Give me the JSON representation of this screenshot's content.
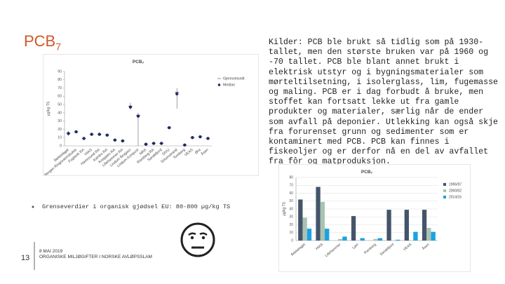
{
  "slide": {
    "title": "PCB",
    "title_sub": "7",
    "paragraph": "Kilder: PCB ble brukt så tidlig som på 1930-tallet, men den største bruken var på 1960 og -70 tallet. PCB ble blant annet brukt i elektrisk utstyr og i bygningsmaterialer som mørteltilsetning, i isolerglass, lim, fugemasse og maling. PCB er i dag forbudt å bruke, men stoffet kan fortsatt lekke ut fra gamle produkter og materialer, særlig når de ender som avfall på deponier. Utlekking kan også skje fra forurenset grunn og sedimenter som er kontaminert med PCB. PCB kan finnes i fiskeoljer og er derfor nå en del av avfallet fra fôr og matproduksjon.",
    "bullet": "Grenseverdier i organisk gjødsel EU: 80-800 µg/kg TS",
    "page_number": "13",
    "date": "8 MAI 2019",
    "footer": "ORGANISKE MILJØGIFTER I NORSKE AVLØPSSLAM"
  },
  "chart_data": [
    {
      "type": "dot",
      "title": "PCB",
      "title_sub": "7",
      "y_label": "µg/kg TS",
      "categories": [
        "Bekkelaget",
        "Bergen Ringsvannsbukta",
        "Fuglevik RA",
        "HIAS",
        "Hamnsund RA",
        "Kambo RA",
        "Knappen RA",
        "Lillehammer RA",
        "Lindum Biogass",
        "Lindum kompost",
        "NRA",
        "Ramberg RA",
        "Sandefjord",
        "SIVU",
        "Solumstrand",
        "Tomberg",
        "VEAS",
        "Øra",
        "Åsen"
      ],
      "series": [
        {
          "name": "Gjennomsnitt",
          "marker": "dash",
          "color": "#8c8c8c",
          "values": [
            15,
            17,
            9,
            14,
            14,
            13,
            7,
            6,
            48,
            37,
            2,
            3,
            3,
            22,
            65,
            1,
            10,
            11,
            9
          ]
        },
        {
          "name": "Median",
          "marker": "dot",
          "color": "#1f2a6b",
          "values": [
            15,
            17,
            9,
            14,
            14,
            13,
            7,
            6,
            47,
            36,
            2,
            3,
            3,
            22,
            63,
            1,
            10,
            11,
            9
          ]
        }
      ],
      "ranges": [
        [
          12,
          18
        ],
        [
          16,
          18
        ],
        [
          8,
          10
        ],
        [
          13,
          15
        ],
        [
          13,
          15
        ],
        [
          12,
          14
        ],
        [
          6,
          8
        ],
        [
          5,
          7
        ],
        [
          44,
          52
        ],
        [
          0,
          40
        ],
        [
          1,
          3
        ],
        [
          2,
          4
        ],
        [
          2,
          4
        ],
        [
          20,
          23
        ],
        [
          45,
          70
        ],
        [
          0,
          2
        ],
        [
          9,
          11
        ],
        [
          10,
          12
        ],
        [
          8,
          10
        ]
      ],
      "ylim": [
        0,
        90
      ],
      "yticks": [
        0,
        10,
        20,
        30,
        40,
        50,
        60,
        70,
        80,
        90
      ],
      "grid": false,
      "legend": "right"
    },
    {
      "type": "bar",
      "title": "PCB",
      "title_sub": "7",
      "y_label": "µg/kg TS",
      "categories": [
        "Bekkelaget",
        "HIAS",
        "Lillehammer",
        "Ljan",
        "Ramberg",
        "Sandefjord",
        "VEAS",
        "Åsen"
      ],
      "series": [
        {
          "name": "1996/97",
          "color": "#44546a",
          "values": [
            52,
            68,
            null,
            31,
            null,
            39,
            39,
            39
          ]
        },
        {
          "name": "2000/02",
          "color": "#a9c2b4",
          "values": [
            29,
            49,
            2,
            null,
            2,
            null,
            null,
            16
          ]
        },
        {
          "name": "2014/16",
          "color": "#1aa3e0",
          "values": [
            15,
            15,
            5,
            3,
            3,
            1,
            11,
            11
          ]
        }
      ],
      "ylim": [
        0,
        80
      ],
      "yticks": [
        0,
        10,
        20,
        30,
        40,
        50,
        60,
        70,
        80
      ],
      "grid": true,
      "legend": "right"
    }
  ]
}
